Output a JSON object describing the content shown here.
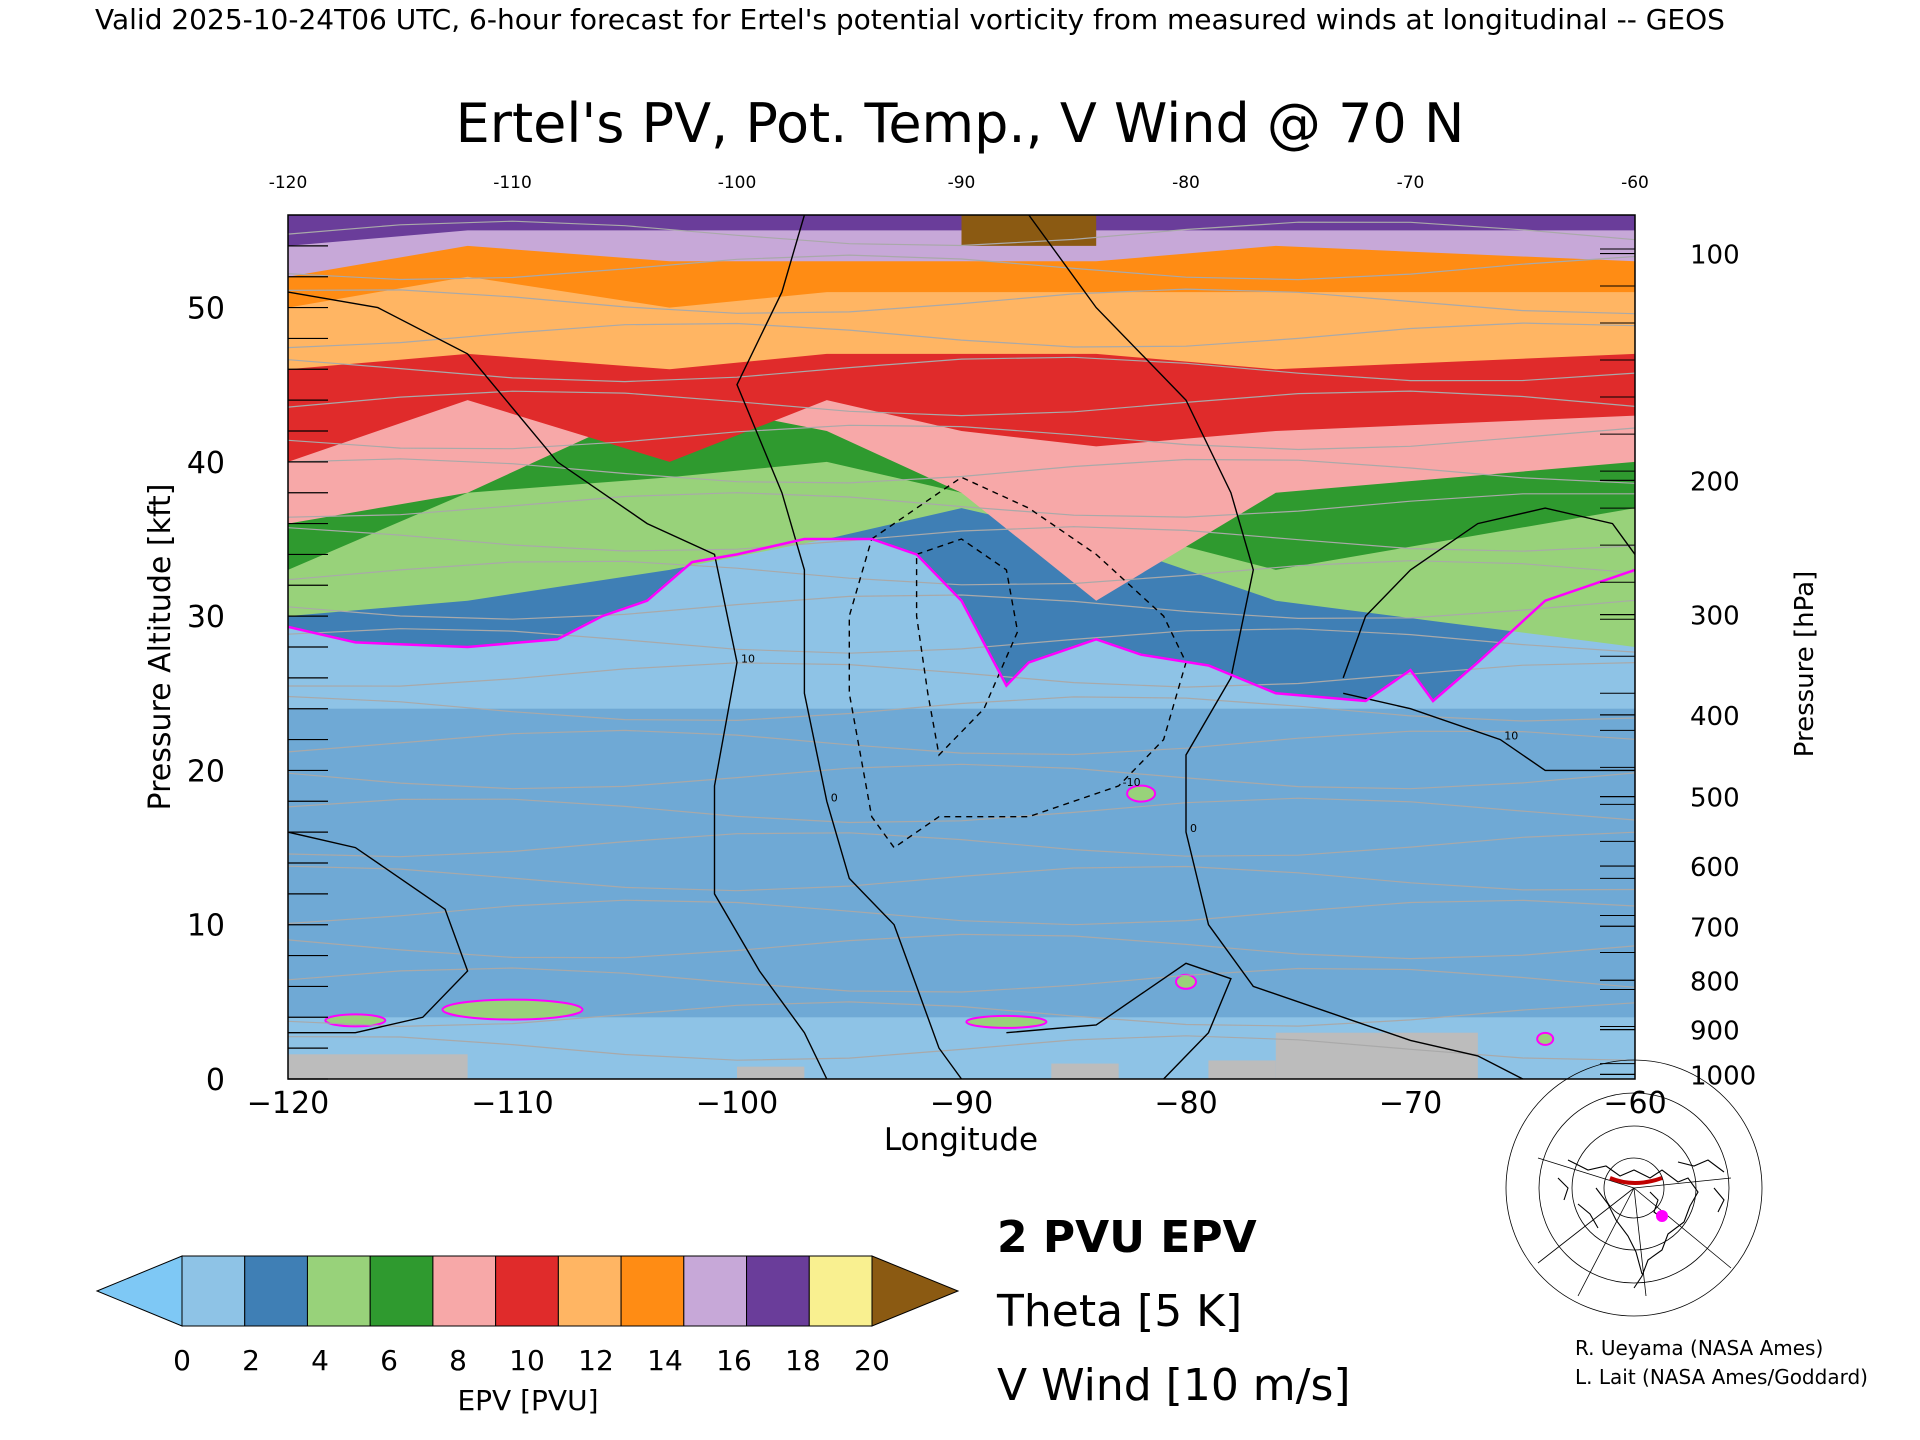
{
  "header_text": "Valid 2025-10-24T06 UTC, 6-hour forecast for Ertel's potential vorticity from measured winds at longitudinal -- GEOS",
  "credits": [
    "R. Ueyama (NASA Ames)",
    "L. Lait (NASA Ames/Goddard)"
  ],
  "legend_lines": [
    {
      "label": "2 PVU EPV",
      "color": "#ff00ff"
    },
    {
      "label": "Theta [5 K]",
      "color": "#a9a9a9"
    },
    {
      "label": "V Wind [10 m/s]",
      "color": "#000000"
    }
  ],
  "colorbar": {
    "label": "EPV [PVU]",
    "ticks": [
      "0",
      "2",
      "4",
      "6",
      "8",
      "10",
      "12",
      "14",
      "16",
      "18",
      "20"
    ],
    "min": 0,
    "max": 20,
    "under_color": "#7ec8f5",
    "over_color": "#8b5a12",
    "colors": [
      "#8ec3e6",
      "#3f7fb5",
      "#98d27a",
      "#2f9a2f",
      "#f7a8a8",
      "#e02b2b",
      "#ffb563",
      "#ff8c14",
      "#c7a8d8",
      "#6a3d9a",
      "#f9f090"
    ]
  },
  "chart_data": {
    "type": "heatmap",
    "title": "Ertel's PV, Pot. Temp., V Wind @ 70 N",
    "xlabel": "Longitude",
    "ylabel": "Pressure Altitude [kft]",
    "y2label": "Pressure [hPa]",
    "xlim": [
      -120,
      -60
    ],
    "ylim": [
      0,
      56
    ],
    "x_ticks": [
      -120,
      -110,
      -100,
      -90,
      -80,
      -70,
      -60
    ],
    "x_tick_labels": [
      "−120",
      "−110",
      "−100",
      "−90",
      "−80",
      "−70",
      "−60"
    ],
    "top_tick_labels": [
      "-120",
      "-110",
      "-100",
      "-90",
      "-80",
      "-70",
      "-60"
    ],
    "y_ticks": [
      0,
      10,
      20,
      30,
      40,
      50
    ],
    "y_tick_labels": [
      "0",
      "10",
      "20",
      "30",
      "40",
      "50"
    ],
    "pressure_ticks": [
      {
        "hpa": "100",
        "kft": 53.5
      },
      {
        "hpa": "200",
        "kft": 38.8
      },
      {
        "hpa": "300",
        "kft": 30.1
      },
      {
        "hpa": "400",
        "kft": 23.6
      },
      {
        "hpa": "500",
        "kft": 18.3
      },
      {
        "hpa": "600",
        "kft": 13.8
      },
      {
        "hpa": "700",
        "kft": 9.9
      },
      {
        "hpa": "800",
        "kft": 6.4
      },
      {
        "hpa": "900",
        "kft": 3.2
      },
      {
        "hpa": "1000",
        "kft": 0.3
      }
    ],
    "tropopause_2pvu": [
      [
        -120,
        29.3
      ],
      [
        -117,
        28.3
      ],
      [
        -112,
        28.0
      ],
      [
        -108,
        28.5
      ],
      [
        -106,
        30.0
      ],
      [
        -104,
        31.0
      ],
      [
        -102,
        33.5
      ],
      [
        -100,
        34.0
      ],
      [
        -97,
        35.0
      ],
      [
        -94,
        35.0
      ],
      [
        -92,
        34.0
      ],
      [
        -90,
        31.0
      ],
      [
        -88,
        25.5
      ],
      [
        -87,
        27.0
      ],
      [
        -84,
        28.5
      ],
      [
        -82,
        27.5
      ],
      [
        -79,
        26.8
      ],
      [
        -76,
        25.0
      ],
      [
        -72,
        24.5
      ],
      [
        -70,
        26.5
      ],
      [
        -69,
        24.5
      ],
      [
        -67,
        27.0
      ],
      [
        -64,
        31.0
      ],
      [
        -60,
        33.0
      ]
    ],
    "pv_layers_kft": [
      {
        "pvu": 4,
        "y": [
          30,
          31,
          33,
          35,
          37,
          35,
          31,
          28
        ]
      },
      {
        "pvu": 6,
        "y": [
          33,
          38,
          39,
          40,
          38,
          36,
          33,
          37
        ]
      },
      {
        "pvu": 8,
        "y": [
          36,
          38,
          44,
          42,
          38,
          31,
          38,
          40
        ]
      },
      {
        "pvu": 10,
        "y": [
          40,
          44,
          40,
          44,
          42,
          41,
          42,
          43
        ]
      },
      {
        "pvu": 12,
        "y": [
          46,
          47,
          46,
          47,
          47,
          47,
          46,
          47
        ]
      },
      {
        "pvu": 14,
        "y": [
          50,
          52,
          50,
          51,
          51,
          51,
          51,
          51
        ]
      },
      {
        "pvu": 16,
        "y": [
          52,
          54,
          53,
          53,
          53,
          53,
          54,
          53
        ]
      },
      {
        "pvu": 18,
        "y": [
          54,
          55,
          55,
          55,
          55,
          55,
          55,
          55
        ]
      }
    ],
    "pv_layer_lons": [
      -120,
      -112,
      -103,
      -96,
      -90,
      -84,
      -76,
      -60
    ],
    "v_wind_contours": [
      {
        "label": "10",
        "dashed": false,
        "points": [
          [
            -120,
            51
          ],
          [
            -116,
            50
          ],
          [
            -112,
            47
          ],
          [
            -108,
            40
          ],
          [
            -104,
            36
          ],
          [
            -101,
            34
          ],
          [
            -100,
            27
          ],
          [
            -101,
            19
          ],
          [
            -101,
            12
          ],
          [
            -99,
            7
          ],
          [
            -97,
            3
          ],
          [
            -96,
            0
          ]
        ]
      },
      {
        "label": "0",
        "dashed": false,
        "points": [
          [
            -97,
            56
          ],
          [
            -98,
            51
          ],
          [
            -100,
            45
          ],
          [
            -98,
            38
          ],
          [
            -97,
            33
          ],
          [
            -97,
            25
          ],
          [
            -96,
            18
          ],
          [
            -95,
            13
          ],
          [
            -93,
            10
          ],
          [
            -92,
            6
          ],
          [
            -91,
            2
          ],
          [
            -90,
            0
          ]
        ]
      },
      {
        "label": "0",
        "dashed": false,
        "points": [
          [
            -87,
            56
          ],
          [
            -84,
            50
          ],
          [
            -80,
            44
          ],
          [
            -78,
            38
          ],
          [
            -77,
            33
          ],
          [
            -78,
            26
          ],
          [
            -80,
            21
          ],
          [
            -80,
            16
          ],
          [
            -79,
            10
          ],
          [
            -77,
            6
          ],
          [
            -73,
            4
          ],
          [
            -70,
            2.5
          ],
          [
            -67,
            1.5
          ],
          [
            -65,
            0
          ]
        ]
      },
      {
        "label": "",
        "dashed": false,
        "points": [
          [
            -120,
            16
          ],
          [
            -117,
            15
          ],
          [
            -113,
            11
          ],
          [
            -112,
            7
          ],
          [
            -114,
            4
          ],
          [
            -117,
            3
          ],
          [
            -120,
            3
          ]
        ]
      },
      {
        "label": "",
        "dashed": false,
        "points": [
          [
            -88,
            3
          ],
          [
            -84,
            3.5
          ],
          [
            -82,
            5.5
          ],
          [
            -80,
            7.5
          ],
          [
            -78,
            6.5
          ],
          [
            -79,
            3
          ],
          [
            -81,
            0
          ]
        ]
      },
      {
        "label": "",
        "dashed": false,
        "points": [
          [
            -73,
            26
          ],
          [
            -72,
            30
          ],
          [
            -70,
            33
          ],
          [
            -67,
            36
          ],
          [
            -64,
            37
          ],
          [
            -61,
            36
          ],
          [
            -60,
            34
          ]
        ]
      },
      {
        "label": "10",
        "dashed": false,
        "points": [
          [
            -60,
            20
          ],
          [
            -64,
            20
          ],
          [
            -66,
            22
          ],
          [
            -70,
            24
          ],
          [
            -73,
            25
          ]
        ]
      },
      {
        "label": "-10",
        "dashed": true,
        "points": [
          [
            -94,
            35
          ],
          [
            -92,
            37
          ],
          [
            -90,
            39
          ],
          [
            -87,
            37
          ],
          [
            -84,
            34
          ],
          [
            -81,
            30
          ],
          [
            -80,
            27
          ],
          [
            -81,
            22
          ],
          [
            -83,
            19
          ],
          [
            -87,
            17
          ],
          [
            -91,
            17
          ],
          [
            -93,
            15
          ],
          [
            -94,
            17
          ],
          [
            -95,
            25
          ],
          [
            -95,
            30
          ],
          [
            -94,
            35
          ]
        ]
      },
      {
        "label": "",
        "dashed": true,
        "points": [
          [
            -92,
            34
          ],
          [
            -90,
            35
          ],
          [
            -88,
            33
          ],
          [
            -87.5,
            29
          ],
          [
            -89,
            24
          ],
          [
            -91,
            21
          ],
          [
            -91.5,
            25
          ],
          [
            -92,
            30
          ],
          [
            -92,
            34
          ]
        ]
      }
    ]
  }
}
